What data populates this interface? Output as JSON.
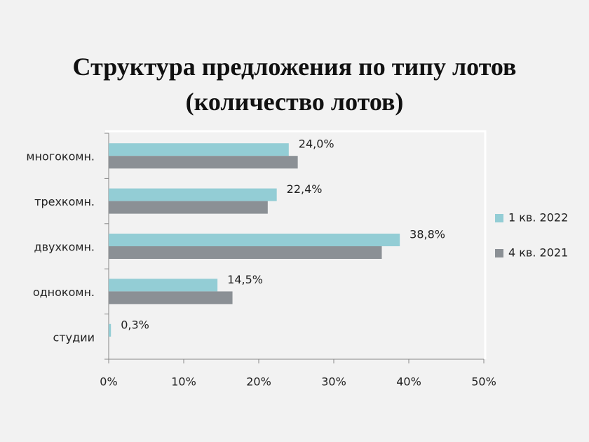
{
  "chart_data": {
    "type": "bar",
    "orientation": "horizontal",
    "title": "Структура предложения по типу лотов (количество лотов)",
    "categories": [
      "многокомн.",
      "трехкомн.",
      "двухкомн.",
      "однокомн.",
      "студии"
    ],
    "series": [
      {
        "name": "1 кв. 2022",
        "color": "#93cdd5",
        "values": [
          24.0,
          22.4,
          38.8,
          14.5,
          0.3
        ],
        "value_labels": [
          "24,0%",
          "22,4%",
          "38,8%",
          "14,5%",
          "0,3%"
        ]
      },
      {
        "name": "4 кв. 2021",
        "color": "#8b9095",
        "values": [
          25.2,
          21.2,
          36.4,
          16.5,
          0
        ]
      }
    ],
    "xlim": [
      0,
      50
    ],
    "xticks": [
      {
        "value": 0,
        "label": "0%"
      },
      {
        "value": 10,
        "label": "10%"
      },
      {
        "value": 20,
        "label": "20%"
      },
      {
        "value": 30,
        "label": "30%"
      },
      {
        "value": 40,
        "label": "40%"
      },
      {
        "value": 50,
        "label": "50%"
      }
    ],
    "legend": "right"
  }
}
